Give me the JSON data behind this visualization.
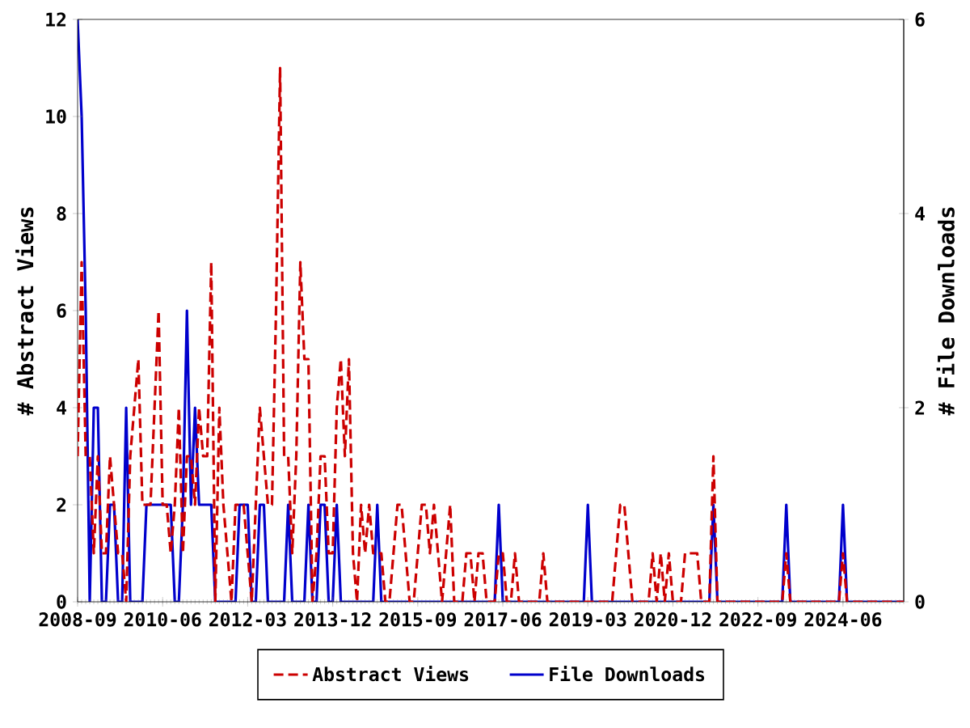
{
  "chart_data": {
    "type": "line",
    "x": [
      "2008-09",
      "2008-10",
      "2008-11",
      "2008-12",
      "2009-01",
      "2009-02",
      "2009-03",
      "2009-04",
      "2009-05",
      "2009-06",
      "2009-07",
      "2009-08",
      "2009-09",
      "2009-10",
      "2009-11",
      "2009-12",
      "2010-01",
      "2010-02",
      "2010-03",
      "2010-04",
      "2010-05",
      "2010-06",
      "2010-07",
      "2010-08",
      "2010-09",
      "2010-10",
      "2010-11",
      "2010-12",
      "2011-01",
      "2011-02",
      "2011-03",
      "2011-04",
      "2011-05",
      "2011-06",
      "2011-07",
      "2011-08",
      "2011-09",
      "2011-10",
      "2011-11",
      "2011-12",
      "2012-01",
      "2012-02",
      "2012-03",
      "2012-04",
      "2012-05",
      "2012-06",
      "2012-07",
      "2012-08",
      "2012-09",
      "2012-10",
      "2012-11",
      "2012-12",
      "2013-01",
      "2013-02",
      "2013-03",
      "2013-04",
      "2013-05",
      "2013-06",
      "2013-07",
      "2013-08",
      "2013-09",
      "2013-10",
      "2013-11",
      "2013-12",
      "2014-01",
      "2014-02",
      "2014-03",
      "2014-04",
      "2014-05",
      "2014-06",
      "2014-07",
      "2014-08",
      "2014-09",
      "2014-10",
      "2014-11",
      "2014-12",
      "2015-01",
      "2015-02",
      "2015-03",
      "2015-04",
      "2015-05",
      "2015-06",
      "2015-07",
      "2015-08",
      "2015-09",
      "2015-10",
      "2015-11",
      "2015-12",
      "2016-01",
      "2016-02",
      "2016-03",
      "2016-04",
      "2016-05",
      "2016-06",
      "2016-07",
      "2016-08",
      "2016-09",
      "2016-10",
      "2016-11",
      "2016-12",
      "2017-01",
      "2017-02",
      "2017-03",
      "2017-04",
      "2017-05",
      "2017-06",
      "2017-07",
      "2017-08",
      "2017-09",
      "2017-10",
      "2017-11",
      "2017-12",
      "2018-01",
      "2018-02",
      "2018-03",
      "2018-04",
      "2018-05",
      "2018-06",
      "2018-07",
      "2018-08",
      "2018-09",
      "2018-10",
      "2018-11",
      "2018-12",
      "2019-01",
      "2019-02",
      "2019-03",
      "2019-04",
      "2019-05",
      "2019-06",
      "2019-07",
      "2019-08",
      "2019-09",
      "2019-10",
      "2019-11",
      "2019-12",
      "2020-01",
      "2020-02",
      "2020-03",
      "2020-04",
      "2020-05",
      "2020-06",
      "2020-07",
      "2020-08",
      "2020-09",
      "2020-10",
      "2020-11",
      "2020-12",
      "2021-01",
      "2021-02",
      "2021-03",
      "2021-04",
      "2021-05",
      "2021-06",
      "2021-07",
      "2021-08",
      "2021-09",
      "2021-10",
      "2021-11",
      "2021-12",
      "2022-01",
      "2022-02",
      "2022-03",
      "2022-04",
      "2022-05",
      "2022-06",
      "2022-07",
      "2022-08",
      "2022-09",
      "2022-10",
      "2022-11",
      "2022-12",
      "2023-01",
      "2023-02",
      "2023-03",
      "2023-04",
      "2023-05",
      "2023-06",
      "2023-07",
      "2023-08",
      "2023-09",
      "2023-10",
      "2023-11",
      "2023-12",
      "2024-01",
      "2024-02",
      "2024-03",
      "2024-04",
      "2024-05",
      "2024-06",
      "2024-07",
      "2024-08",
      "2024-09",
      "2024-10",
      "2024-11",
      "2024-12",
      "2025-01",
      "2025-02",
      "2025-03",
      "2025-04",
      "2025-05",
      "2025-06",
      "2025-07",
      "2025-08",
      "2025-09"
    ],
    "xlim": [
      "2008-09",
      "2025-09"
    ],
    "xticks": [
      "2008-09",
      "2010-06",
      "2012-03",
      "2013-12",
      "2015-09",
      "2017-06",
      "2019-03",
      "2020-12",
      "2022-09",
      "2024-06"
    ],
    "ylim": [
      0,
      12
    ],
    "yticks": [
      0,
      2,
      4,
      6,
      8,
      10,
      12
    ],
    "y2lim": [
      0,
      6
    ],
    "y2ticks": [
      0,
      2,
      4,
      6
    ],
    "ylabel": "# Abstract Views",
    "y2label": "# File Downloads",
    "legend": "bottom",
    "series": [
      {
        "name": "Abstract Views",
        "color": "#cc0000",
        "line_style": "dashed",
        "values": [
          3,
          7,
          3,
          3,
          1,
          3,
          1,
          1,
          3,
          2,
          1,
          1,
          0,
          3,
          4,
          5,
          2,
          2,
          2,
          4,
          6,
          2,
          2,
          1,
          2,
          4,
          1,
          3,
          3,
          2,
          4,
          3,
          3,
          7,
          0,
          4,
          2,
          1,
          0,
          2,
          2,
          2,
          1,
          0,
          2,
          4,
          3,
          2,
          2,
          6,
          11,
          3,
          3,
          1,
          3,
          7,
          5,
          5,
          0,
          1,
          3,
          3,
          1,
          1,
          4,
          5,
          3,
          5,
          1,
          0,
          2,
          1,
          2,
          1,
          1,
          1,
          0,
          0,
          1,
          2,
          2,
          1,
          0,
          0,
          1,
          2,
          2,
          1,
          2,
          1,
          0,
          1,
          2,
          0,
          0,
          0,
          1,
          1,
          0,
          1,
          1,
          0,
          0,
          0,
          1,
          1,
          0,
          0,
          1,
          0,
          0,
          0,
          0,
          0,
          0,
          1,
          0,
          0,
          0,
          0,
          0,
          0,
          0,
          0,
          0,
          0,
          0,
          0,
          0,
          0,
          0,
          0,
          0,
          1,
          2,
          2,
          1,
          0,
          0,
          0,
          0,
          0,
          1,
          0,
          1,
          0,
          1,
          0,
          0,
          0,
          1,
          1,
          1,
          1,
          0,
          0,
          0,
          3,
          0,
          0,
          0,
          0,
          0,
          0,
          0,
          0,
          0,
          0,
          0,
          0,
          0,
          0,
          0,
          0,
          0,
          1,
          0,
          0,
          0,
          0,
          0,
          0,
          0,
          0,
          0,
          0,
          0,
          0,
          0,
          1,
          0,
          0,
          0,
          0,
          0,
          0,
          0,
          0,
          0,
          0,
          0,
          0,
          0,
          0,
          0
        ]
      },
      {
        "name": "File Downloads",
        "color": "#0000cc",
        "line_style": "solid",
        "axis": "y2",
        "values": [
          6,
          5,
          3,
          0,
          2,
          2,
          0,
          0,
          1,
          1,
          0,
          0,
          2,
          0,
          0,
          0,
          0,
          1,
          1,
          1,
          1,
          1,
          1,
          1,
          0,
          0,
          1,
          3,
          1,
          2,
          1,
          1,
          1,
          1,
          0,
          0,
          0,
          0,
          0,
          0,
          1,
          1,
          1,
          0,
          0,
          1,
          1,
          0,
          0,
          0,
          0,
          0,
          1,
          0,
          0,
          0,
          0,
          1,
          0,
          0,
          1,
          1,
          0,
          0,
          1,
          0,
          0,
          0,
          0,
          0,
          0,
          0,
          0,
          0,
          1,
          0,
          0,
          0,
          0,
          0,
          0,
          0,
          0,
          0,
          0,
          0,
          0,
          0,
          0,
          0,
          0,
          0,
          0,
          0,
          0,
          0,
          0,
          0,
          0,
          0,
          0,
          0,
          0,
          0,
          1,
          0,
          0,
          0,
          0,
          0,
          0,
          0,
          0,
          0,
          0,
          0,
          0,
          0,
          0,
          0,
          0,
          0,
          0,
          0,
          0,
          0,
          1,
          0,
          0,
          0,
          0,
          0,
          0,
          0,
          0,
          0,
          0,
          0,
          0,
          0,
          0,
          0,
          0,
          0,
          0,
          0,
          0,
          0,
          0,
          0,
          0,
          0,
          0,
          0,
          0,
          0,
          0,
          1,
          0,
          0,
          0,
          0,
          0,
          0,
          0,
          0,
          0,
          0,
          0,
          0,
          0,
          0,
          0,
          0,
          0,
          1,
          0,
          0,
          0,
          0,
          0,
          0,
          0,
          0,
          0,
          0,
          0,
          0,
          0,
          1,
          0,
          0,
          0,
          0,
          0,
          0,
          0,
          0,
          0,
          0,
          0,
          0,
          0,
          0,
          0
        ]
      }
    ]
  }
}
